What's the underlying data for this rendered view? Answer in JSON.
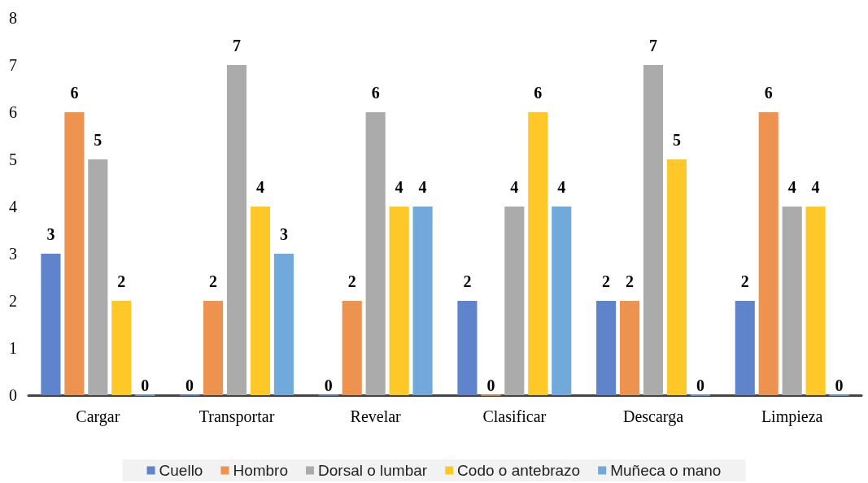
{
  "chart_data": {
    "type": "bar",
    "categories": [
      "Cargar",
      "Transportar",
      "Revelar",
      "Clasificar",
      "Descarga",
      "Limpieza"
    ],
    "series": [
      {
        "name": "Cuello",
        "color": "#5f84cb",
        "values": [
          3,
          0,
          0,
          2,
          2,
          2
        ]
      },
      {
        "name": "Hombro",
        "color": "#ee9250",
        "values": [
          6,
          2,
          2,
          0,
          2,
          6
        ]
      },
      {
        "name": "Dorsal o lumbar",
        "color": "#ababab",
        "values": [
          5,
          7,
          6,
          4,
          7,
          4
        ]
      },
      {
        "name": "Codo o antebrazo",
        "color": "#fec829",
        "values": [
          2,
          4,
          4,
          6,
          5,
          4
        ]
      },
      {
        "name": "Muñeca o mano",
        "color": "#72a9db",
        "values": [
          0,
          3,
          4,
          4,
          0,
          0
        ]
      }
    ],
    "ylim": [
      0,
      8
    ],
    "yticks": [
      0,
      1,
      2,
      3,
      4,
      5,
      6,
      7,
      8
    ],
    "grid": false,
    "legend": "bottom",
    "data_labels": true
  }
}
